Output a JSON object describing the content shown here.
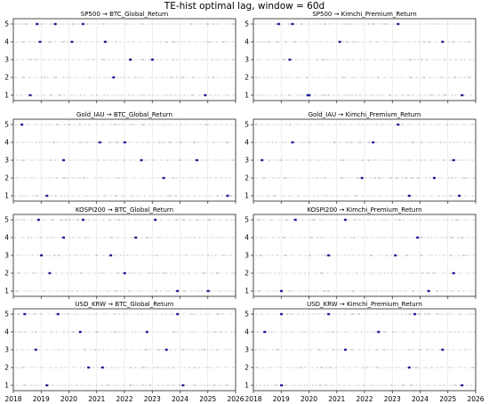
{
  "figure": {
    "suptitle": "TE-hist optimal lag, window = 60d"
  },
  "chart_data": [
    {
      "type": "scatter",
      "title": "SP500 → BTC_Global_Return",
      "xlim": [
        2018.0,
        2026.0
      ],
      "ylim": [
        0.7,
        5.3
      ],
      "x_ticks": [
        2018,
        2019,
        2020,
        2021,
        2022,
        2023,
        2024,
        2025,
        2026
      ],
      "y_ticks": [
        1,
        2,
        3,
        4,
        5
      ],
      "grid": true,
      "highlight_points": [
        {
          "x": 2018.85,
          "y": 5
        },
        {
          "x": 2019.5,
          "y": 5
        },
        {
          "x": 2020.5,
          "y": 5
        },
        {
          "x": 2018.95,
          "y": 4
        },
        {
          "x": 2020.1,
          "y": 4
        },
        {
          "x": 2021.3,
          "y": 4
        },
        {
          "x": 2023.0,
          "y": 3
        },
        {
          "x": 2022.2,
          "y": 3
        },
        {
          "x": 2021.6,
          "y": 2
        },
        {
          "x": 2018.6,
          "y": 1
        },
        {
          "x": 2024.9,
          "y": 1
        }
      ]
    },
    {
      "type": "scatter",
      "title": "SP500 → Kimchi_Premium_Return",
      "xlim": [
        2018.0,
        2026.0
      ],
      "ylim": [
        0.7,
        5.3
      ],
      "x_ticks": [
        2018,
        2019,
        2020,
        2021,
        2022,
        2023,
        2024,
        2025,
        2026
      ],
      "y_ticks": [
        1,
        2,
        3,
        4,
        5
      ],
      "grid": true,
      "highlight_points": [
        {
          "x": 2018.9,
          "y": 5
        },
        {
          "x": 2019.4,
          "y": 5
        },
        {
          "x": 2023.2,
          "y": 5
        },
        {
          "x": 2019.3,
          "y": 3
        },
        {
          "x": 2021.1,
          "y": 4
        },
        {
          "x": 2024.8,
          "y": 4
        },
        {
          "x": 2019.95,
          "y": 1
        },
        {
          "x": 2020.0,
          "y": 1
        },
        {
          "x": 2025.5,
          "y": 1
        }
      ]
    },
    {
      "type": "scatter",
      "title": "Gold_IAU → BTC_Global_Return",
      "xlim": [
        2018.0,
        2026.0
      ],
      "ylim": [
        0.7,
        5.3
      ],
      "x_ticks": [
        2018,
        2019,
        2020,
        2021,
        2022,
        2023,
        2024,
        2025,
        2026
      ],
      "y_ticks": [
        1,
        2,
        3,
        4,
        5
      ],
      "grid": true,
      "highlight_points": [
        {
          "x": 2018.3,
          "y": 5
        },
        {
          "x": 2021.1,
          "y": 4
        },
        {
          "x": 2022.0,
          "y": 4
        },
        {
          "x": 2019.8,
          "y": 3
        },
        {
          "x": 2022.6,
          "y": 3
        },
        {
          "x": 2024.6,
          "y": 3
        },
        {
          "x": 2023.4,
          "y": 2
        },
        {
          "x": 2019.2,
          "y": 1
        },
        {
          "x": 2025.7,
          "y": 1
        }
      ]
    },
    {
      "type": "scatter",
      "title": "Gold_IAU → Kimchi_Premium_Return",
      "xlim": [
        2018.0,
        2026.0
      ],
      "ylim": [
        0.7,
        5.3
      ],
      "x_ticks": [
        2018,
        2019,
        2020,
        2021,
        2022,
        2023,
        2024,
        2025,
        2026
      ],
      "y_ticks": [
        1,
        2,
        3,
        4,
        5
      ],
      "grid": true,
      "highlight_points": [
        {
          "x": 2023.2,
          "y": 5
        },
        {
          "x": 2019.4,
          "y": 4
        },
        {
          "x": 2022.3,
          "y": 4
        },
        {
          "x": 2018.3,
          "y": 3
        },
        {
          "x": 2025.2,
          "y": 3
        },
        {
          "x": 2021.9,
          "y": 2
        },
        {
          "x": 2024.5,
          "y": 2
        },
        {
          "x": 2023.6,
          "y": 1
        },
        {
          "x": 2025.4,
          "y": 1
        }
      ]
    },
    {
      "type": "scatter",
      "title": "KOSPI200 → BTC_Global_Return",
      "xlim": [
        2018.0,
        2026.0
      ],
      "ylim": [
        0.7,
        5.3
      ],
      "x_ticks": [
        2018,
        2019,
        2020,
        2021,
        2022,
        2023,
        2024,
        2025,
        2026
      ],
      "y_ticks": [
        1,
        2,
        3,
        4,
        5
      ],
      "grid": true,
      "highlight_points": [
        {
          "x": 2018.9,
          "y": 5
        },
        {
          "x": 2020.5,
          "y": 5
        },
        {
          "x": 2023.1,
          "y": 5
        },
        {
          "x": 2019.8,
          "y": 4
        },
        {
          "x": 2022.4,
          "y": 4
        },
        {
          "x": 2019.0,
          "y": 3
        },
        {
          "x": 2021.5,
          "y": 3
        },
        {
          "x": 2019.3,
          "y": 2
        },
        {
          "x": 2022.0,
          "y": 2
        },
        {
          "x": 2023.9,
          "y": 1
        },
        {
          "x": 2025.0,
          "y": 1
        }
      ]
    },
    {
      "type": "scatter",
      "title": "KOSPI200 → Kimchi_Premium_Return",
      "xlim": [
        2018.0,
        2026.0
      ],
      "ylim": [
        0.7,
        5.3
      ],
      "x_ticks": [
        2018,
        2019,
        2020,
        2021,
        2022,
        2023,
        2024,
        2025,
        2026
      ],
      "y_ticks": [
        1,
        2,
        3,
        4,
        5
      ],
      "grid": true,
      "highlight_points": [
        {
          "x": 2019.5,
          "y": 5
        },
        {
          "x": 2021.3,
          "y": 5
        },
        {
          "x": 2023.9,
          "y": 4
        },
        {
          "x": 2020.7,
          "y": 3
        },
        {
          "x": 2023.1,
          "y": 3
        },
        {
          "x": 2025.2,
          "y": 2
        },
        {
          "x": 2019.0,
          "y": 1
        },
        {
          "x": 2024.3,
          "y": 1
        }
      ]
    },
    {
      "type": "scatter",
      "title": "USD_KRW → BTC_Global_Return",
      "xlim": [
        2018.0,
        2026.0
      ],
      "ylim": [
        0.7,
        5.3
      ],
      "x_ticks": [
        2018,
        2019,
        2020,
        2021,
        2022,
        2023,
        2024,
        2025,
        2026
      ],
      "y_ticks": [
        1,
        2,
        3,
        4,
        5
      ],
      "grid": true,
      "highlight_points": [
        {
          "x": 2018.4,
          "y": 5
        },
        {
          "x": 2019.6,
          "y": 5
        },
        {
          "x": 2023.9,
          "y": 5
        },
        {
          "x": 2020.4,
          "y": 4
        },
        {
          "x": 2022.8,
          "y": 4
        },
        {
          "x": 2018.8,
          "y": 3
        },
        {
          "x": 2023.5,
          "y": 3
        },
        {
          "x": 2020.7,
          "y": 2
        },
        {
          "x": 2021.2,
          "y": 2
        },
        {
          "x": 2019.2,
          "y": 1
        },
        {
          "x": 2024.1,
          "y": 1
        }
      ]
    },
    {
      "type": "scatter",
      "title": "USD_KRW → Kimchi_Premium_Return",
      "xlim": [
        2018.0,
        2026.0
      ],
      "ylim": [
        0.7,
        5.3
      ],
      "x_ticks": [
        2018,
        2019,
        2020,
        2021,
        2022,
        2023,
        2024,
        2025,
        2026
      ],
      "y_ticks": [
        1,
        2,
        3,
        4,
        5
      ],
      "grid": true,
      "highlight_points": [
        {
          "x": 2019.0,
          "y": 5
        },
        {
          "x": 2020.7,
          "y": 5
        },
        {
          "x": 2023.8,
          "y": 5
        },
        {
          "x": 2018.4,
          "y": 4
        },
        {
          "x": 2022.5,
          "y": 4
        },
        {
          "x": 2021.3,
          "y": 3
        },
        {
          "x": 2024.8,
          "y": 3
        },
        {
          "x": 2023.6,
          "y": 2
        },
        {
          "x": 2019.0,
          "y": 1
        },
        {
          "x": 2025.5,
          "y": 1
        }
      ]
    }
  ],
  "colors": {
    "minor_point": "#a9a9b7",
    "highlight_point": "#1f1f9a",
    "grid": "#e3e3e3",
    "axis": "#222222",
    "text": "#000000"
  }
}
